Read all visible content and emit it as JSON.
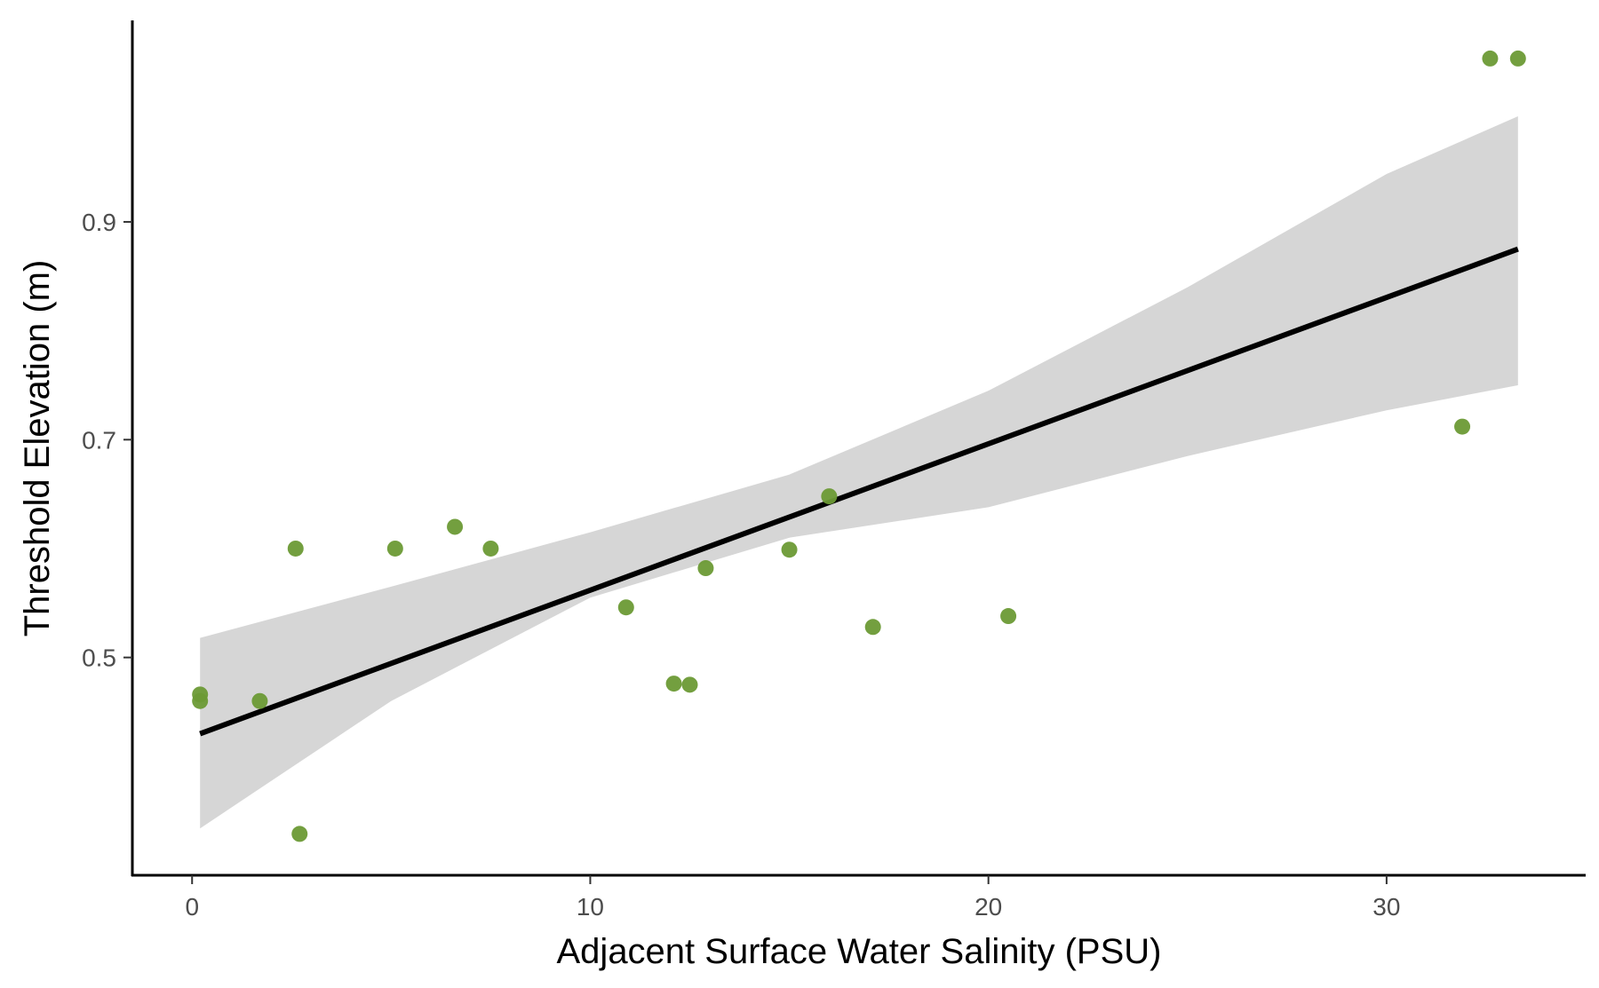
{
  "chart_data": {
    "type": "scatter",
    "title": "",
    "xlabel": "Adjacent Surface Water Salinity (PSU)",
    "ylabel": "Threshold Elevation (m)",
    "xlim": [
      -1.5,
      35
    ],
    "ylim": [
      0.3,
      1.085
    ],
    "x_ticks": [
      0,
      10,
      20,
      30
    ],
    "x_tick_labels": [
      "0",
      "10",
      "20",
      "30"
    ],
    "y_ticks": [
      0.5,
      0.7,
      0.9
    ],
    "y_tick_labels": [
      "0.5",
      "0.7",
      "0.9"
    ],
    "grid": false,
    "legend": "none",
    "point_color": "#6b9a35",
    "line_color": "#000000",
    "band_color": "#d6d6d6",
    "points": [
      {
        "x": 0.2,
        "y": 0.466
      },
      {
        "x": 0.2,
        "y": 0.46
      },
      {
        "x": 1.7,
        "y": 0.46
      },
      {
        "x": 2.6,
        "y": 0.6
      },
      {
        "x": 2.7,
        "y": 0.338
      },
      {
        "x": 5.1,
        "y": 0.6
      },
      {
        "x": 6.6,
        "y": 0.62
      },
      {
        "x": 7.5,
        "y": 0.6
      },
      {
        "x": 10.9,
        "y": 0.546
      },
      {
        "x": 12.1,
        "y": 0.476
      },
      {
        "x": 12.5,
        "y": 0.475
      },
      {
        "x": 12.9,
        "y": 0.582
      },
      {
        "x": 15.0,
        "y": 0.599
      },
      {
        "x": 16.0,
        "y": 0.648
      },
      {
        "x": 17.1,
        "y": 0.528
      },
      {
        "x": 20.5,
        "y": 0.538
      },
      {
        "x": 31.9,
        "y": 0.712
      },
      {
        "x": 32.6,
        "y": 1.05
      },
      {
        "x": 33.3,
        "y": 1.05
      }
    ],
    "fit_line": {
      "x": [
        0.2,
        33.3
      ],
      "y": [
        0.43,
        0.875
      ]
    },
    "confidence_band": {
      "x": [
        0.2,
        5,
        10,
        15,
        20,
        25,
        30,
        33.3
      ],
      "lower": [
        0.343,
        0.46,
        0.555,
        0.61,
        0.638,
        0.685,
        0.727,
        0.75
      ],
      "upper": [
        0.518,
        0.565,
        0.615,
        0.668,
        0.745,
        0.84,
        0.944,
        0.997
      ]
    }
  }
}
